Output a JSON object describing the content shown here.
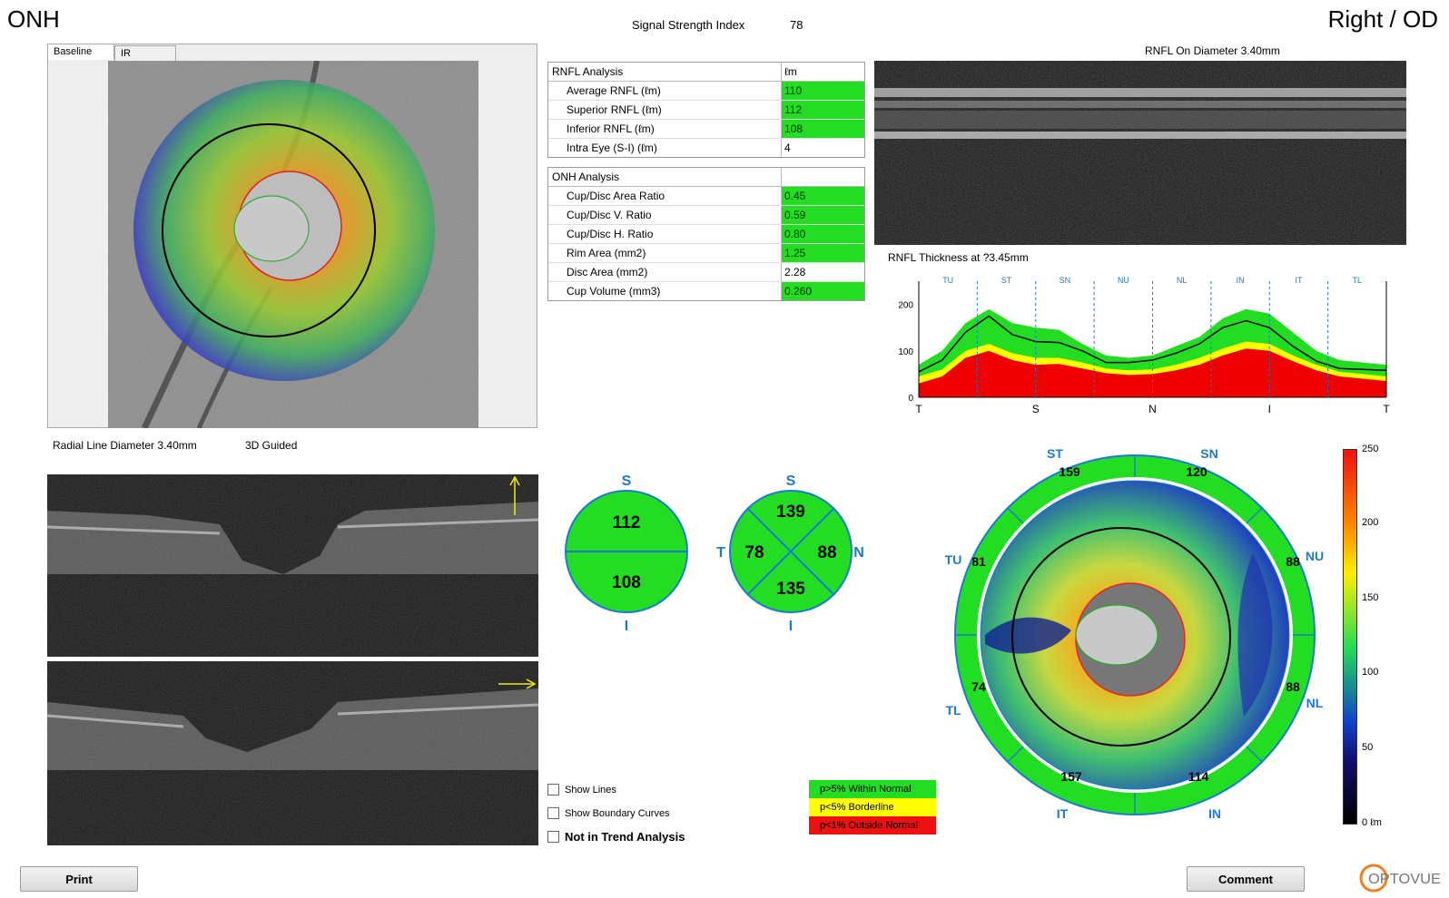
{
  "header": {
    "title": "ONH",
    "signal_label": "Signal Strength Index",
    "signal_value": "78",
    "eye": "Right / OD"
  },
  "fundus": {
    "tabs": [
      "Baseline",
      "IR"
    ],
    "caption_left": "Radial Line Diameter 3.40mm",
    "caption_right": "3D Guided"
  },
  "rnfl_table": {
    "header": "RNFL Analysis",
    "unit": "ℓm",
    "rows": [
      {
        "label": "Average RNFL (ℓm)",
        "value": "110",
        "status": "normal"
      },
      {
        "label": "Superior RNFL (ℓm)",
        "value": "112",
        "status": "normal"
      },
      {
        "label": "Inferior RNFL (ℓm)",
        "value": "108",
        "status": "normal"
      },
      {
        "label": "Intra Eye (S-I) (ℓm)",
        "value": "4",
        "status": "none"
      }
    ]
  },
  "onh_table": {
    "header": "ONH Analysis",
    "rows": [
      {
        "label": "Cup/Disc Area Ratio",
        "value": "0.45",
        "status": "normal"
      },
      {
        "label": "Cup/Disc V. Ratio",
        "value": "0.59",
        "status": "normal"
      },
      {
        "label": "Cup/Disc H. Ratio",
        "value": "0.80",
        "status": "normal"
      },
      {
        "label": "Rim Area (mm2)",
        "value": "1.25",
        "status": "normal"
      },
      {
        "label": "Disc Area (mm2)",
        "value": "2.28",
        "status": "none"
      },
      {
        "label": "Cup Volume (mm3)",
        "value": "0.260",
        "status": "normal"
      }
    ]
  },
  "rnfl_scan_title": "RNFL On Diameter 3.40mm",
  "chart_data": {
    "type": "area",
    "title": "RNFL Thickness at ?3.45mm",
    "sector_labels": [
      "TU",
      "ST",
      "SN",
      "NU",
      "NL",
      "IN",
      "IT",
      "TL"
    ],
    "x_ticks": [
      "T",
      "S",
      "N",
      "I",
      "T"
    ],
    "y_ticks": [
      0,
      100,
      200
    ],
    "ylim": [
      0,
      250
    ],
    "x": [
      0,
      8,
      16,
      24,
      32,
      40,
      48,
      56,
      64,
      72,
      80,
      88,
      96,
      104,
      112,
      120,
      128,
      136,
      144,
      152,
      160
    ],
    "series": [
      {
        "name": "",
        "color": "#22dd22",
        "values": [
          70,
          100,
          160,
          190,
          160,
          150,
          145,
          115,
          90,
          85,
          90,
          110,
          130,
          170,
          190,
          180,
          140,
          100,
          80,
          75,
          70
        ]
      },
      {
        "name": "",
        "color": "#ffff00",
        "values": [
          45,
          60,
          100,
          115,
          95,
          85,
          85,
          75,
          62,
          58,
          60,
          70,
          85,
          105,
          120,
          115,
          90,
          70,
          55,
          50,
          45
        ]
      },
      {
        "name": "",
        "color": "#ee0000",
        "values": [
          30,
          45,
          85,
          100,
          80,
          70,
          72,
          62,
          52,
          48,
          50,
          58,
          70,
          90,
          105,
          100,
          78,
          58,
          45,
          40,
          35
        ]
      },
      {
        "name": "",
        "color": "#000000",
        "values": [
          55,
          80,
          140,
          175,
          135,
          120,
          118,
          100,
          75,
          75,
          80,
          95,
          115,
          150,
          165,
          150,
          110,
          78,
          62,
          60,
          58
        ]
      }
    ]
  },
  "quadrants": {
    "hemi": {
      "top": "112",
      "bottom": "108",
      "s": "S",
      "i": "I"
    },
    "quad": {
      "s": "139",
      "i": "135",
      "t": "78",
      "n": "88",
      "lbl_s": "S",
      "lbl_i": "I",
      "lbl_t": "T",
      "lbl_n": "N"
    }
  },
  "polar": {
    "sectors": {
      "st": "159",
      "sn": "120",
      "nu": "88",
      "nl": "88",
      "in": "114",
      "it": "157",
      "tl": "74",
      "tu": "81"
    },
    "labels": {
      "st": "ST",
      "sn": "SN",
      "nu": "NU",
      "nl": "NL",
      "in": "IN",
      "it": "IT",
      "tl": "TL",
      "tu": "TU"
    },
    "scale": [
      "250",
      "200",
      "150",
      "100",
      "50",
      "0 ℓm"
    ]
  },
  "options": {
    "show_lines": "Show Lines",
    "show_boundary": "Show Boundary Curves",
    "not_in_trend": "Not in Trend Analysis"
  },
  "legend": [
    {
      "text": "p>5% Within Normal",
      "color": "#22dd22"
    },
    {
      "text": "p<5% Borderline",
      "color": "#ffff00"
    },
    {
      "text": "p<1% Outside Normal",
      "color": "#ee1111"
    }
  ],
  "buttons": {
    "print": "Print",
    "comment": "Comment"
  },
  "brand": "OPTOVUE"
}
